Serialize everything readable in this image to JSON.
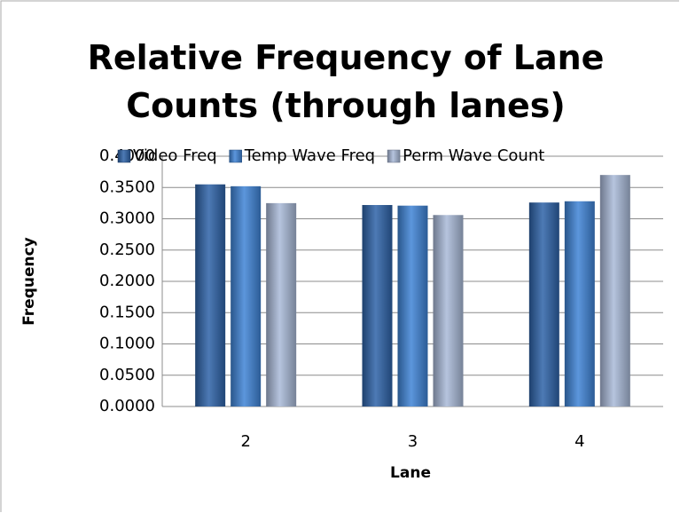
{
  "chart_data": {
    "type": "bar",
    "title": "Relative Frequency of Lane Counts (through lanes)",
    "x_label": "Lane",
    "y_label": "Frequency",
    "categories": [
      "2",
      "3",
      "4"
    ],
    "series": [
      {
        "name": "Video Freq",
        "color": "#2e62a8",
        "values": [
          0.355,
          0.322,
          0.326
        ]
      },
      {
        "name": "Temp Wave Freq",
        "color": "#3f84d6",
        "values": [
          0.352,
          0.321,
          0.328
        ]
      },
      {
        "name": "Perm Wave Count",
        "color": "#a9b9d8",
        "values": [
          0.325,
          0.306,
          0.37
        ]
      }
    ],
    "ylim": [
      0,
      0.4
    ],
    "yticks": [
      {
        "value": 0,
        "label": "0.0000"
      },
      {
        "value": 0.05,
        "label": "0.0500"
      },
      {
        "value": 0.1,
        "label": "0.1000"
      },
      {
        "value": 0.15,
        "label": "0.1500"
      },
      {
        "value": 0.2,
        "label": "0.2000"
      },
      {
        "value": 0.25,
        "label": "0.2500"
      },
      {
        "value": 0.3,
        "label": "0.3000"
      },
      {
        "value": 0.35,
        "label": "0.3500"
      },
      {
        "value": 0.4,
        "label": "0.4000"
      }
    ],
    "grid": true,
    "legend": "top"
  }
}
